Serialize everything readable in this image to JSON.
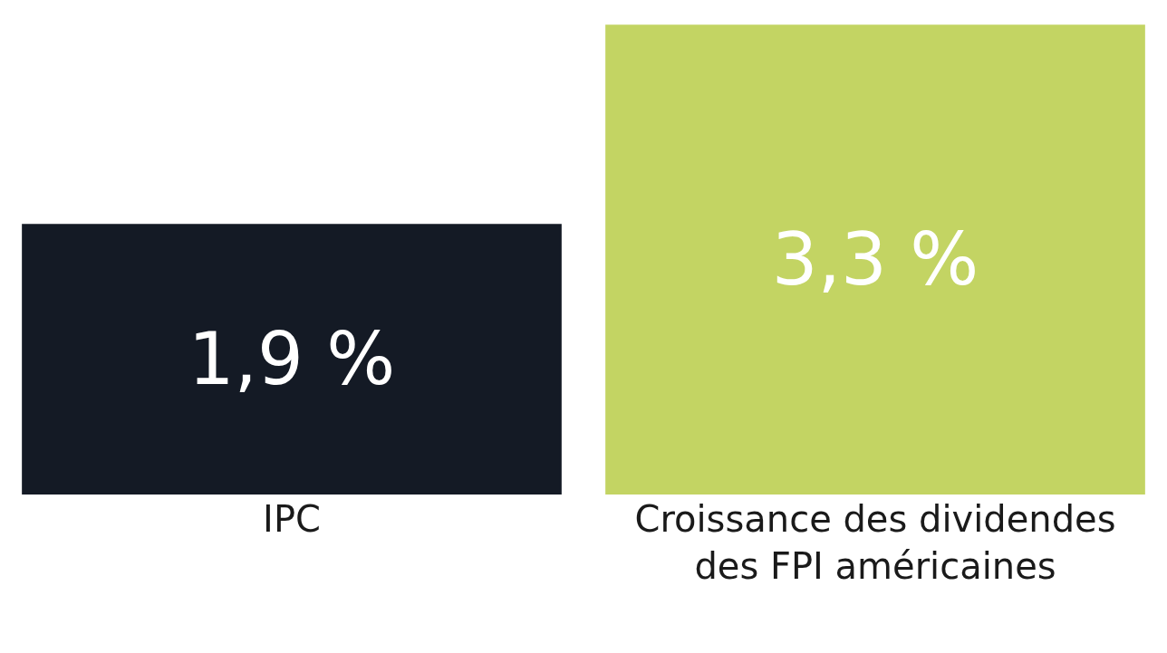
{
  "chart_data": {
    "type": "bar",
    "categories": [
      "IPC",
      "Croissance des dividendes des FPI américaines"
    ],
    "values": [
      1.9,
      3.3
    ],
    "colors": [
      "#141a25",
      "#c3d463"
    ],
    "value_labels": [
      "1,9 %",
      "3,3 %"
    ]
  }
}
